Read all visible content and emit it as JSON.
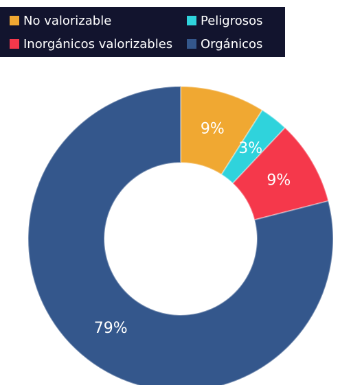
{
  "chart_data": {
    "type": "donut",
    "categories": [
      "No valorizable",
      "Peligrosos",
      "Inorgánicos valorizables",
      "Orgánicos"
    ],
    "values": [
      9,
      3,
      9,
      79
    ],
    "value_labels": [
      "9%",
      "3%",
      "9%",
      "79%"
    ],
    "colors": [
      "#f0a832",
      "#2fd3dc",
      "#f5384b",
      "#34578c"
    ],
    "legend": "top"
  }
}
